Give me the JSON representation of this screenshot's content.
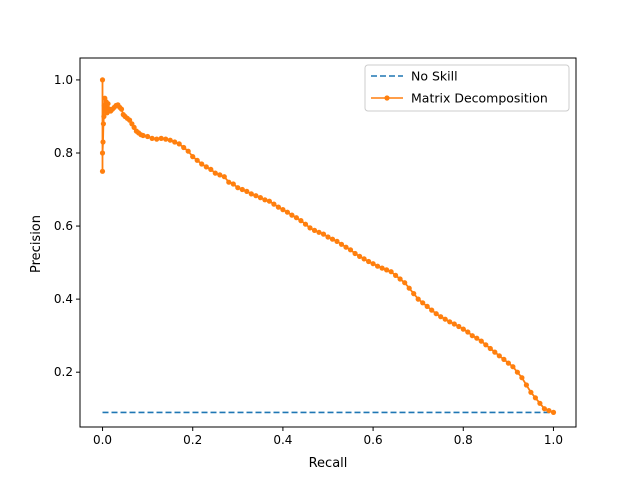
{
  "chart_data": {
    "type": "line",
    "title": "",
    "xlabel": "Recall",
    "ylabel": "Precision",
    "xlim": [
      -0.05,
      1.05
    ],
    "ylim": [
      0.05,
      1.06
    ],
    "xticks": [
      0.0,
      0.2,
      0.4,
      0.6,
      0.8,
      1.0
    ],
    "xtick_labels": [
      "0.0",
      "0.2",
      "0.4",
      "0.6",
      "0.8",
      "1.0"
    ],
    "yticks": [
      0.2,
      0.4,
      0.6,
      0.8,
      1.0
    ],
    "ytick_labels": [
      "0.2",
      "0.4",
      "0.6",
      "0.8",
      "1.0"
    ],
    "grid": false,
    "legend_position": "top-right",
    "series": [
      {
        "name": "No Skill",
        "color": "#1f77b4",
        "style": "dashed",
        "marker": "none",
        "x": [
          0.0,
          1.0
        ],
        "y": [
          0.09,
          0.09
        ]
      },
      {
        "name": "Matrix Decomposition",
        "color": "#ff7f0e",
        "style": "solid",
        "marker": "dot",
        "x": [
          0.0,
          0.0,
          0.0,
          0.001,
          0.002,
          0.003,
          0.004,
          0.005,
          0.006,
          0.008,
          0.01,
          0.012,
          0.015,
          0.018,
          0.022,
          0.026,
          0.03,
          0.034,
          0.038,
          0.042,
          0.046,
          0.05,
          0.055,
          0.06,
          0.065,
          0.07,
          0.075,
          0.08,
          0.085,
          0.09,
          0.1,
          0.11,
          0.12,
          0.13,
          0.14,
          0.15,
          0.16,
          0.17,
          0.18,
          0.19,
          0.2,
          0.21,
          0.22,
          0.23,
          0.24,
          0.25,
          0.26,
          0.27,
          0.28,
          0.29,
          0.3,
          0.31,
          0.32,
          0.33,
          0.34,
          0.35,
          0.36,
          0.37,
          0.38,
          0.39,
          0.4,
          0.41,
          0.42,
          0.43,
          0.44,
          0.45,
          0.46,
          0.47,
          0.48,
          0.49,
          0.5,
          0.51,
          0.52,
          0.53,
          0.54,
          0.55,
          0.56,
          0.57,
          0.58,
          0.59,
          0.6,
          0.61,
          0.62,
          0.63,
          0.64,
          0.65,
          0.66,
          0.67,
          0.68,
          0.69,
          0.7,
          0.71,
          0.72,
          0.73,
          0.74,
          0.75,
          0.76,
          0.77,
          0.78,
          0.79,
          0.8,
          0.81,
          0.82,
          0.83,
          0.84,
          0.85,
          0.86,
          0.87,
          0.88,
          0.89,
          0.9,
          0.91,
          0.92,
          0.93,
          0.94,
          0.95,
          0.96,
          0.97,
          0.98,
          0.99,
          1.0
        ],
        "y": [
          1.0,
          0.75,
          0.8,
          0.83,
          0.88,
          0.9,
          0.93,
          0.95,
          0.92,
          0.94,
          0.91,
          0.935,
          0.92,
          0.915,
          0.92,
          0.925,
          0.93,
          0.932,
          0.925,
          0.92,
          0.905,
          0.9,
          0.895,
          0.89,
          0.88,
          0.87,
          0.86,
          0.855,
          0.85,
          0.848,
          0.845,
          0.84,
          0.838,
          0.84,
          0.838,
          0.835,
          0.83,
          0.825,
          0.815,
          0.805,
          0.79,
          0.78,
          0.77,
          0.762,
          0.755,
          0.745,
          0.74,
          0.735,
          0.72,
          0.715,
          0.705,
          0.7,
          0.695,
          0.688,
          0.683,
          0.678,
          0.672,
          0.668,
          0.66,
          0.652,
          0.645,
          0.638,
          0.63,
          0.623,
          0.615,
          0.605,
          0.595,
          0.588,
          0.583,
          0.578,
          0.57,
          0.564,
          0.558,
          0.55,
          0.542,
          0.535,
          0.525,
          0.517,
          0.51,
          0.503,
          0.497,
          0.49,
          0.485,
          0.48,
          0.475,
          0.465,
          0.455,
          0.445,
          0.43,
          0.415,
          0.4,
          0.39,
          0.38,
          0.37,
          0.36,
          0.352,
          0.345,
          0.338,
          0.332,
          0.325,
          0.318,
          0.31,
          0.3,
          0.293,
          0.285,
          0.275,
          0.265,
          0.255,
          0.245,
          0.235,
          0.225,
          0.215,
          0.2,
          0.185,
          0.165,
          0.145,
          0.13,
          0.115,
          0.1,
          0.095,
          0.09
        ]
      }
    ]
  }
}
